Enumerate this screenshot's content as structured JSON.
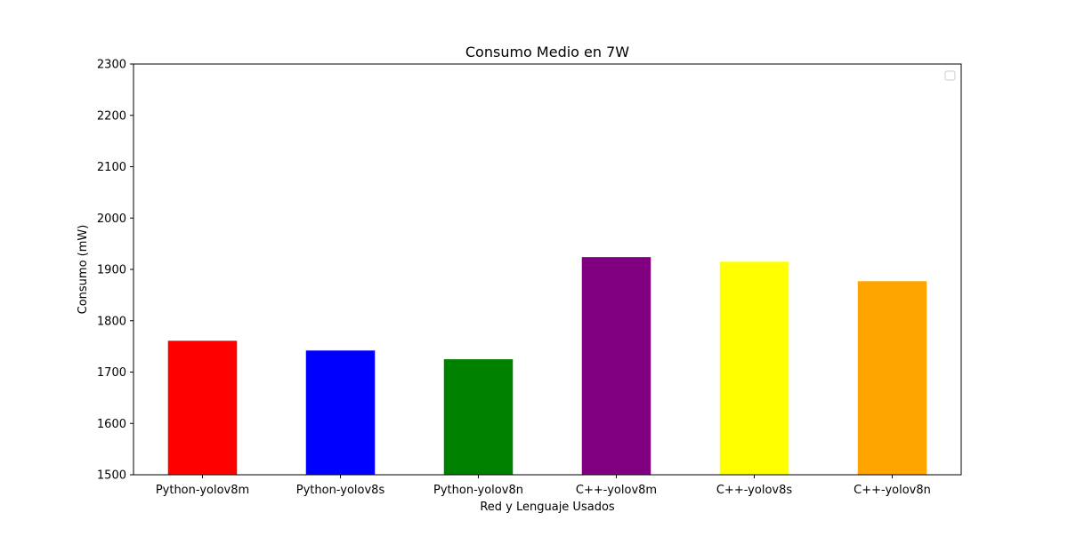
{
  "chart_data": {
    "type": "bar",
    "title": "Consumo Medio en 7W",
    "xlabel": "Red y Lenguaje Usados",
    "ylabel": "Consumo (mW)",
    "categories": [
      "Python-yolov8m",
      "Python-yolov8s",
      "Python-yolov8n",
      "C++-yolov8m",
      "C++-yolov8s",
      "C++-yolov8n"
    ],
    "values": [
      1761,
      1742,
      1725,
      1924,
      1915,
      1877
    ],
    "colors": [
      "#ff0000",
      "#0000ff",
      "#008000",
      "#800080",
      "#ffff00",
      "#ffa500"
    ],
    "ylim": [
      1500,
      2300
    ],
    "yticks": [
      1500,
      1600,
      1700,
      1800,
      1900,
      2000,
      2100,
      2200,
      2300
    ],
    "grid": false,
    "legend": {
      "placement": "top-right",
      "entries": []
    }
  }
}
